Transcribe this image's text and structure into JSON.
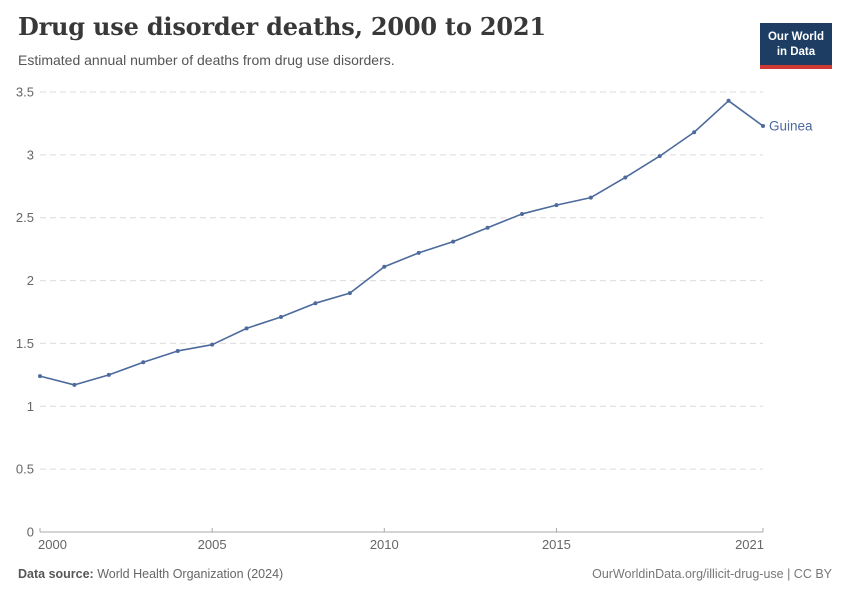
{
  "header": {
    "title": "Drug use disorder deaths, 2000 to 2021",
    "subtitle": "Estimated annual number of deaths from drug use disorders.",
    "logo": {
      "line1": "Our World",
      "line2": "in Data",
      "bg_color": "#1d3d63",
      "bar_color": "#cf3b34"
    }
  },
  "chart_data": {
    "type": "line",
    "title": "Drug use disorder deaths, 2000 to 2021",
    "xlabel": "",
    "ylabel": "",
    "x": [
      2000,
      2001,
      2002,
      2003,
      2004,
      2005,
      2006,
      2007,
      2008,
      2009,
      2010,
      2011,
      2012,
      2013,
      2014,
      2015,
      2016,
      2017,
      2018,
      2019,
      2020,
      2021
    ],
    "series": [
      {
        "name": "Guinea",
        "color": "#4c6a9c",
        "values": [
          1.24,
          1.17,
          1.25,
          1.35,
          1.44,
          1.49,
          1.62,
          1.71,
          1.82,
          1.9,
          2.11,
          2.22,
          2.31,
          2.42,
          2.53,
          2.6,
          2.66,
          2.82,
          2.99,
          3.18,
          3.43,
          3.23
        ]
      }
    ],
    "xlim": [
      2000,
      2021
    ],
    "ylim": [
      0,
      3.5
    ],
    "x_ticks": [
      2000,
      2005,
      2010,
      2015,
      2021
    ],
    "y_ticks": [
      0,
      0.5,
      1,
      1.5,
      2,
      2.5,
      3,
      3.5
    ],
    "grid": "horizontal-dashed",
    "legend_position": "end-of-line",
    "grid_color": "#dcdcdc",
    "axis_color": "#a8a8a8",
    "tick_color": "#666666"
  },
  "footer": {
    "source_label": "Data source:",
    "source_value": "World Health Organization (2024)",
    "credit": "OurWorldinData.org/illicit-drug-use | CC BY"
  }
}
